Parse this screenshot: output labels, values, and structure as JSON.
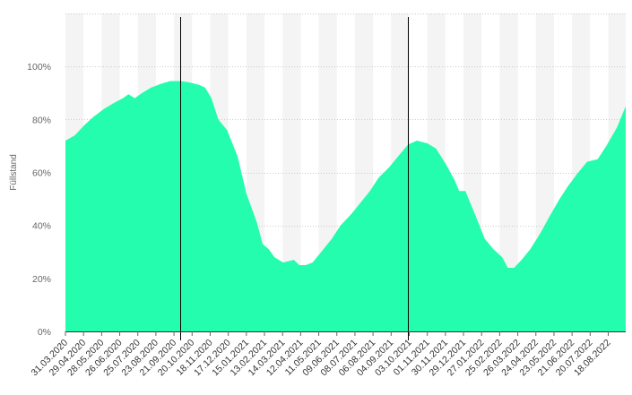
{
  "chart_data": {
    "type": "area",
    "title": "",
    "xlabel": "",
    "ylabel": "Füllstand",
    "ylim": [
      0,
      120
    ],
    "y_ticks": [
      {
        "value": 0,
        "label": "0%"
      },
      {
        "value": 20,
        "label": "20%"
      },
      {
        "value": 40,
        "label": "40%"
      },
      {
        "value": 60,
        "label": "60%"
      },
      {
        "value": 80,
        "label": "80%"
      },
      {
        "value": 100,
        "label": "100%"
      }
    ],
    "x_range": [
      "2020-03-31",
      "2022-09-15"
    ],
    "x_ticks": [
      "31.03.2020",
      "29.04.2020",
      "28.05.2020",
      "26.06.2020",
      "25.07.2020",
      "23.08.2020",
      "21.09.2020",
      "20.10.2020",
      "18.11.2020",
      "17.12.2020",
      "15.01.2021",
      "13.02.2021",
      "14.03.2021",
      "12.04.2021",
      "11.05.2021",
      "09.06.2021",
      "08.07.2021",
      "06.08.2021",
      "04.09.2021",
      "03.10.2021",
      "01.11.2021",
      "30.11.2021",
      "29.12.2021",
      "27.01.2022",
      "25.02.2022",
      "26.03.2022",
      "24.04.2022",
      "23.05.2022",
      "21.06.2022",
      "20.07.2022",
      "18.08.2022"
    ],
    "markers": [
      "2020-10-01",
      "2021-10-01"
    ],
    "grid": true,
    "colors": {
      "fill": "#24fdad",
      "band": "#f4f4f4",
      "grid": "#cccccc",
      "marker": "#000000"
    },
    "series": [
      {
        "name": "",
        "x": [
          "2020-03-31",
          "2020-04-15",
          "2020-05-01",
          "2020-05-15",
          "2020-06-01",
          "2020-06-15",
          "2020-07-01",
          "2020-07-10",
          "2020-07-20",
          "2020-08-01",
          "2020-08-15",
          "2020-09-01",
          "2020-09-15",
          "2020-10-01",
          "2020-10-15",
          "2020-11-01",
          "2020-11-10",
          "2020-11-20",
          "2020-12-01",
          "2020-12-15",
          "2021-01-01",
          "2021-01-15",
          "2021-02-01",
          "2021-02-10",
          "2021-02-20",
          "2021-03-01",
          "2021-03-15",
          "2021-04-01",
          "2021-04-10",
          "2021-04-20",
          "2021-05-01",
          "2021-05-15",
          "2021-06-01",
          "2021-06-15",
          "2021-07-01",
          "2021-07-15",
          "2021-08-01",
          "2021-08-15",
          "2021-09-01",
          "2021-09-15",
          "2021-10-01",
          "2021-10-15",
          "2021-11-01",
          "2021-11-15",
          "2021-12-01",
          "2021-12-15",
          "2021-12-22",
          "2022-01-01",
          "2022-01-15",
          "2022-02-01",
          "2022-02-15",
          "2022-03-01",
          "2022-03-10",
          "2022-03-20",
          "2022-04-01",
          "2022-04-15",
          "2022-05-01",
          "2022-05-15",
          "2022-06-01",
          "2022-06-15",
          "2022-07-01",
          "2022-07-15",
          "2022-08-01",
          "2022-08-15",
          "2022-09-01",
          "2022-09-15"
        ],
        "values": [
          72,
          74,
          78,
          81,
          84,
          86,
          88,
          89.5,
          88,
          90,
          92,
          93.5,
          94.5,
          94.5,
          94,
          93,
          92,
          88,
          80,
          76,
          66,
          52,
          41,
          33,
          31,
          28,
          26,
          27,
          25,
          25,
          26,
          30,
          35,
          40,
          44,
          48,
          53,
          58,
          62,
          66,
          70.5,
          72,
          71,
          69,
          63,
          57,
          53,
          53,
          45,
          35,
          31,
          28,
          24,
          24,
          27,
          31,
          37,
          43,
          50,
          55,
          60,
          64,
          65,
          70,
          77,
          85
        ]
      }
    ]
  }
}
